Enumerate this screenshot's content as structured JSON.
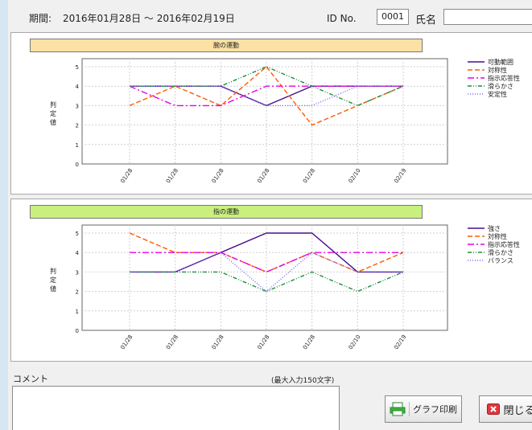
{
  "header": {
    "period_label": "期間:",
    "period_value": "2016年01月28日 ～ 2016年02月19日",
    "id_label": "ID No.",
    "id_value": "0001",
    "name_label": "氏名",
    "name_value": ""
  },
  "chart_data": [
    {
      "type": "line",
      "title": "腕の運動",
      "ylabel": "判定値",
      "ylim": [
        0,
        5
      ],
      "yticks": [
        0,
        1,
        2,
        3,
        4,
        5
      ],
      "categories": [
        "01/28",
        "01/28",
        "01/28",
        "01/28",
        "01/28",
        "02/10",
        "02/19"
      ],
      "banner_color": "#fbe1a4",
      "series": [
        {
          "name": "可動範囲",
          "values": [
            4,
            4,
            4,
            3,
            4,
            4,
            4
          ],
          "color": "#4b0f8c",
          "dash": ""
        },
        {
          "name": "対称性",
          "values": [
            3,
            4,
            3,
            5,
            2,
            3,
            4
          ],
          "color": "#ff5a00",
          "dash": "6,3"
        },
        {
          "name": "指示応答性",
          "values": [
            4,
            3,
            3,
            4,
            4,
            4,
            4
          ],
          "color": "#e600e6",
          "dash": "8,3,2,3"
        },
        {
          "name": "滑らかさ",
          "values": [
            4,
            4,
            4,
            5,
            4,
            3,
            4
          ],
          "color": "#1e8c3c",
          "dash": "5,2,1,2,1,2"
        },
        {
          "name": "安定性",
          "values": [
            4,
            4,
            4,
            3,
            3,
            4,
            4
          ],
          "color": "#7b68ee",
          "dash": "1,2"
        }
      ]
    },
    {
      "type": "line",
      "title": "指の運動",
      "ylabel": "判定値",
      "ylim": [
        0,
        5
      ],
      "yticks": [
        0,
        1,
        2,
        3,
        4,
        5
      ],
      "categories": [
        "01/28",
        "01/28",
        "01/28",
        "01/28",
        "01/28",
        "02/10",
        "02/19"
      ],
      "banner_color": "#c9f07c",
      "series": [
        {
          "name": "強さ",
          "values": [
            3,
            3,
            4,
            5,
            5,
            3,
            3
          ],
          "color": "#4b0f8c",
          "dash": ""
        },
        {
          "name": "対称性",
          "values": [
            5,
            4,
            4,
            3,
            4,
            3,
            4
          ],
          "color": "#ff5a00",
          "dash": "6,3"
        },
        {
          "name": "指示応答性",
          "values": [
            4,
            4,
            4,
            3,
            4,
            4,
            4
          ],
          "color": "#e600e6",
          "dash": "8,3,2,3"
        },
        {
          "name": "滑らかさ",
          "values": [
            3,
            3,
            3,
            2,
            3,
            2,
            3
          ],
          "color": "#1e8c3c",
          "dash": "5,2,1,2,1,2"
        },
        {
          "name": "バランス",
          "values": [
            3,
            3,
            4,
            2,
            4,
            3,
            3
          ],
          "color": "#7b68ee",
          "dash": "1,2"
        }
      ]
    }
  ],
  "footer": {
    "comment_label": "コメント",
    "max_input": "(最大入力150文字)",
    "comment_value": "",
    "print_label": "グラフ印刷",
    "close_label": "閉じる"
  },
  "icons": {
    "print": "printer-icon",
    "close": "close-icon"
  }
}
